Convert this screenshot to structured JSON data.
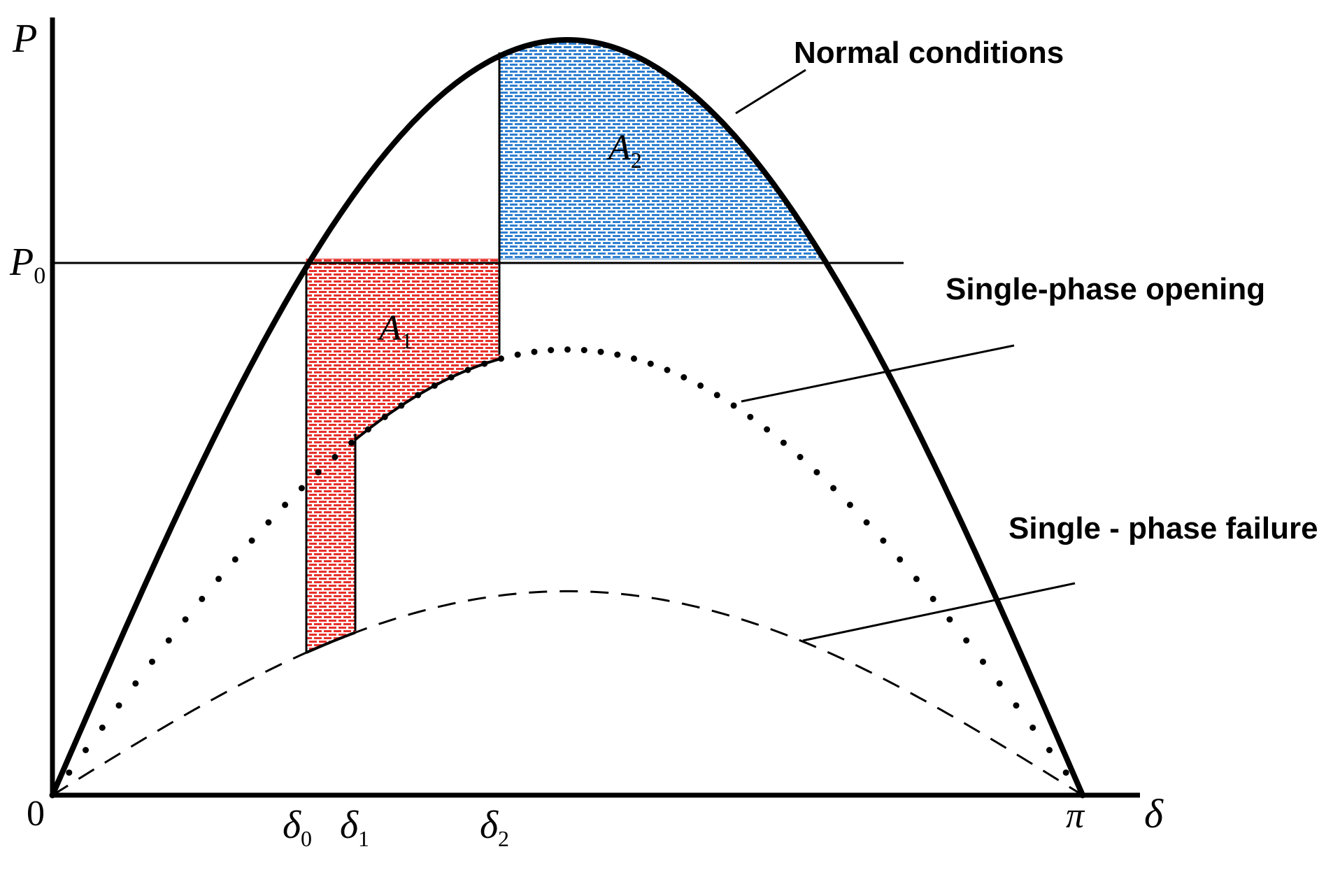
{
  "labels": {
    "y_axis": "P",
    "x_axis": "δ",
    "origin": "0",
    "p0_main": "P",
    "p0_sub": "0",
    "pi": "π",
    "delta0_main": "δ",
    "delta0_sub": "0",
    "delta1_main": "δ",
    "delta1_sub": "1",
    "delta2_main": "δ",
    "delta2_sub": "2",
    "a1_main": "A",
    "a1_sub": "1",
    "a2_main": "A",
    "a2_sub": "2"
  },
  "curves": {
    "normal": "Normal conditions",
    "opening": "Single-phase opening",
    "failure": "Single - phase failure"
  },
  "colors": {
    "axis": "#000000",
    "area1": "#e8302a",
    "area2": "#2f7fd0"
  },
  "model": {
    "normal_peak": 1.0,
    "opening_peak": 0.59,
    "failure_peak": 0.27,
    "p0": 0.71
  }
}
